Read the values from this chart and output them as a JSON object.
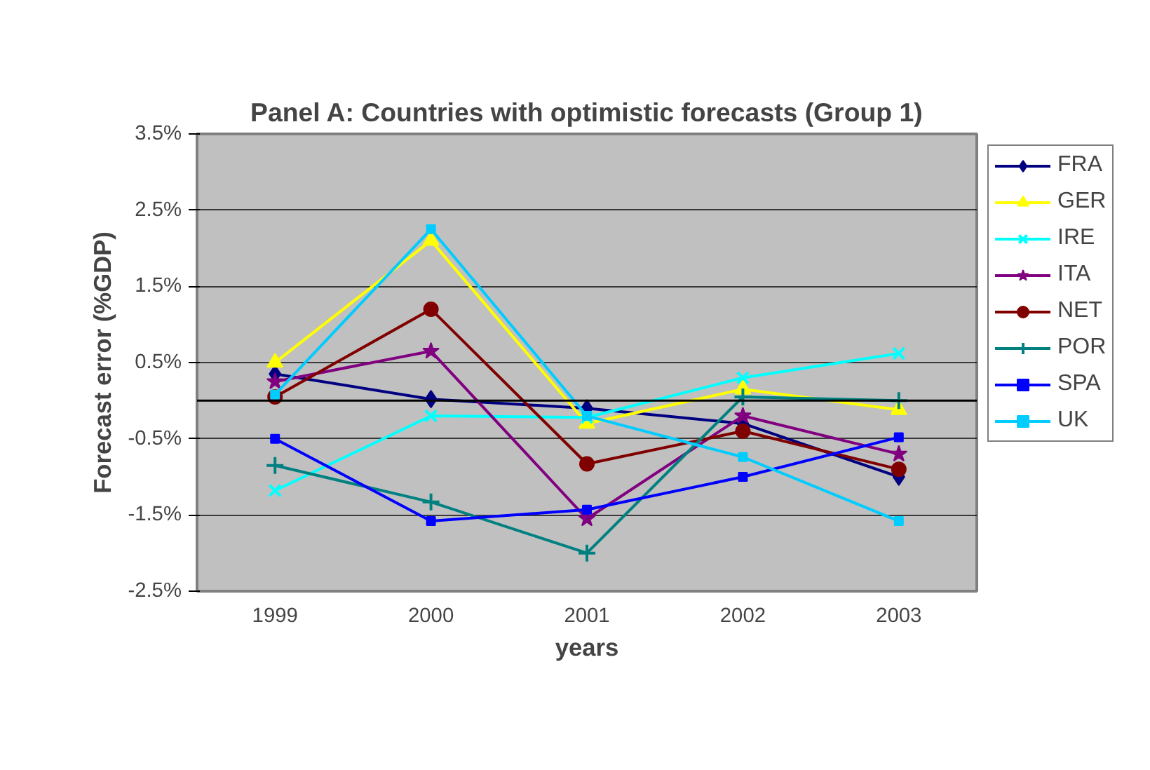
{
  "chart_data": {
    "type": "line",
    "title": "Panel A: Countries with optimistic forecasts (Group 1)",
    "xlabel": "years",
    "ylabel": "Forecast error (%GDP)",
    "categories": [
      "1999",
      "2000",
      "2001",
      "2002",
      "2003"
    ],
    "ylim": [
      -2.5,
      3.5
    ],
    "yticks": [
      {
        "value": -2.5,
        "label": "-2.5%"
      },
      {
        "value": -1.5,
        "label": "-1.5%"
      },
      {
        "value": -0.5,
        "label": "-0.5%"
      },
      {
        "value": 0.5,
        "label": "0.5%"
      },
      {
        "value": 1.5,
        "label": "1.5%"
      },
      {
        "value": 2.5,
        "label": "2.5%"
      },
      {
        "value": 3.5,
        "label": "3.5%"
      }
    ],
    "grid": "y",
    "legend": "right",
    "ref_lines": [
      {
        "axis": "y",
        "value": 0,
        "color": "#000000"
      }
    ],
    "series": [
      {
        "name": "FRA",
        "color": "#000080",
        "marker": "diamond",
        "values": [
          0.35,
          0.02,
          -0.1,
          -0.3,
          -1.0
        ]
      },
      {
        "name": "GER",
        "color": "#ffff00",
        "marker": "triangle",
        "values": [
          0.5,
          2.1,
          -0.3,
          0.15,
          -0.12
        ]
      },
      {
        "name": "IRE",
        "color": "#00ffff",
        "marker": "x",
        "values": [
          -1.18,
          -0.2,
          -0.22,
          0.3,
          0.62
        ]
      },
      {
        "name": "ITA",
        "color": "#800080",
        "marker": "star",
        "values": [
          0.25,
          0.65,
          -1.55,
          -0.2,
          -0.7
        ]
      },
      {
        "name": "NET",
        "color": "#800000",
        "marker": "circle",
        "values": [
          0.05,
          1.2,
          -0.83,
          -0.4,
          -0.9
        ]
      },
      {
        "name": "POR",
        "color": "#008080",
        "marker": "cross",
        "values": [
          -0.85,
          -1.33,
          -2.0,
          0.05,
          0.0
        ]
      },
      {
        "name": "SPA",
        "color": "#0000ff",
        "marker": "square",
        "values": [
          -0.5,
          -1.58,
          -1.43,
          -1.0,
          -0.48
        ]
      },
      {
        "name": "UK",
        "color": "#00ccff",
        "marker": "square",
        "values": [
          0.08,
          2.25,
          -0.2,
          -0.74,
          -1.58
        ]
      }
    ]
  }
}
